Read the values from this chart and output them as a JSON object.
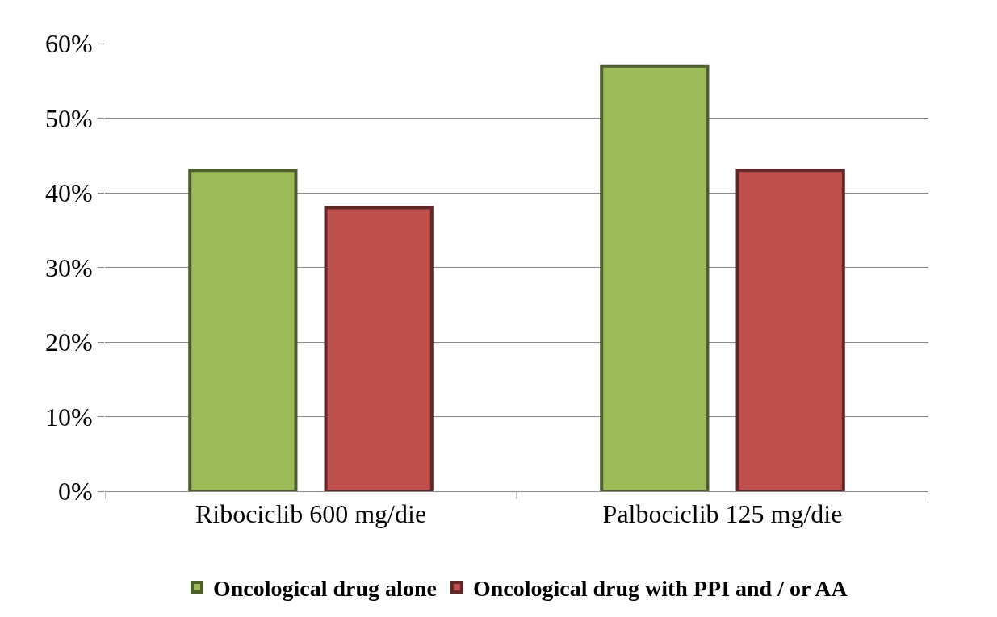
{
  "chart_data": {
    "type": "bar",
    "categories": [
      "Ribociclib 600 mg/die",
      "Palbociclib 125 mg/die"
    ],
    "series": [
      {
        "name": "Oncological drug alone",
        "color": "#9bbb59",
        "values": [
          43,
          57
        ]
      },
      {
        "name": "Oncological drug with PPI and / or AA",
        "color": "#c0504d",
        "values": [
          38,
          43
        ]
      }
    ],
    "ylim": [
      0,
      60
    ],
    "yticks": [
      {
        "value": 0,
        "label": "0%"
      },
      {
        "value": 10,
        "label": "10%"
      },
      {
        "value": 20,
        "label": "20%"
      },
      {
        "value": 30,
        "label": "30%"
      },
      {
        "value": 40,
        "label": "40%"
      },
      {
        "value": 50,
        "label": "50%"
      },
      {
        "value": 60,
        "label": "60%"
      }
    ],
    "grid": "y",
    "legend": "bottom"
  }
}
